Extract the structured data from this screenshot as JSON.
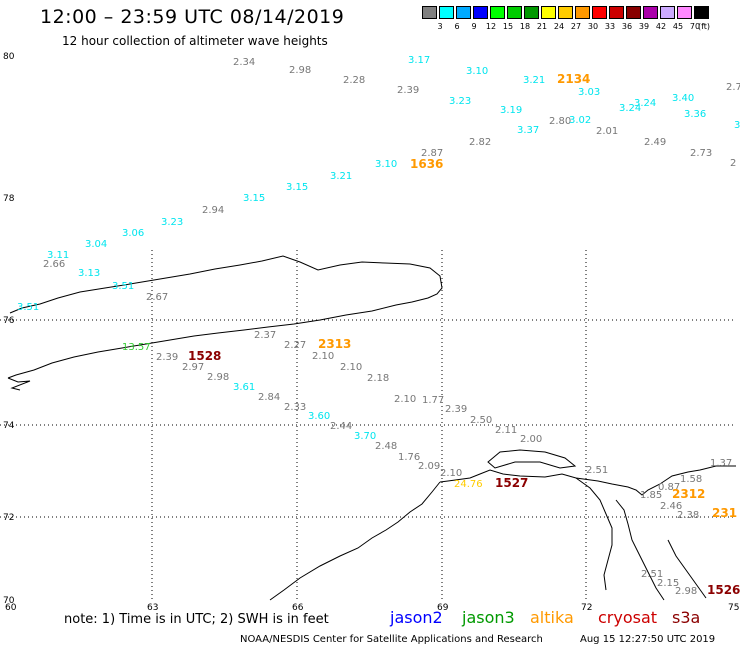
{
  "header": {
    "title": "12:00 – 23:59 UTC 08/14/2019",
    "subtitle": "12 hour collection of altimeter wave heights"
  },
  "legend": {
    "unit": "(ft)",
    "swatches": [
      {
        "color": "#808080",
        "label": "3"
      },
      {
        "color": "#00ffff",
        "label": "6"
      },
      {
        "color": "#00aaff",
        "label": "9"
      },
      {
        "color": "#0000ff",
        "label": "12"
      },
      {
        "color": "#00ff00",
        "label": "15"
      },
      {
        "color": "#00cc00",
        "label": "18"
      },
      {
        "color": "#009900",
        "label": "21"
      },
      {
        "color": "#ffff00",
        "label": "24"
      },
      {
        "color": "#ffcc00",
        "label": "27"
      },
      {
        "color": "#ff9900",
        "label": "30"
      },
      {
        "color": "#ff0000",
        "label": "33"
      },
      {
        "color": "#cc0000",
        "label": "36"
      },
      {
        "color": "#880000",
        "label": "39"
      },
      {
        "color": "#aa00aa",
        "label": "42"
      },
      {
        "color": "#ccaaff",
        "label": "45"
      },
      {
        "color": "#ff88ff",
        "label": "70"
      },
      {
        "color": "#000000",
        "label": ""
      }
    ]
  },
  "map": {
    "lat_labels": [
      "80",
      "78",
      "76",
      "74",
      "72",
      "70"
    ],
    "lon_labels": [
      "60",
      "63",
      "66",
      "69",
      "72",
      "75"
    ],
    "colors": {
      "gray": "#777777",
      "cyan": "#00e5ee",
      "orange": "#ff9900",
      "darkred": "#8b0000",
      "green": "#33cc33",
      "yellow": "#ffcc00"
    },
    "wave_labels": [
      {
        "text": "2.34",
        "c": "gray"
      },
      {
        "text": "2.98",
        "c": "gray"
      },
      {
        "text": "2.28",
        "c": "gray"
      },
      {
        "text": "3.17",
        "c": "cyan"
      },
      {
        "text": "3.10",
        "c": "cyan"
      },
      {
        "text": "2.39",
        "c": "gray"
      },
      {
        "text": "3.21",
        "c": "cyan"
      },
      {
        "text": "2134",
        "c": "orange"
      },
      {
        "text": "3.03",
        "c": "cyan"
      },
      {
        "text": "3.23",
        "c": "cyan"
      },
      {
        "text": "3.19",
        "c": "cyan"
      },
      {
        "text": "3.24",
        "c": "cyan"
      },
      {
        "text": "3.24",
        "c": "cyan"
      },
      {
        "text": "3.40",
        "c": "cyan"
      },
      {
        "text": "3.36",
        "c": "cyan"
      },
      {
        "text": "2.80",
        "c": "gray"
      },
      {
        "text": "3.02",
        "c": "cyan"
      },
      {
        "text": "3.37",
        "c": "cyan"
      },
      {
        "text": "2.01",
        "c": "gray"
      },
      {
        "text": "2.82",
        "c": "gray"
      },
      {
        "text": "2.49",
        "c": "gray"
      },
      {
        "text": "2.87",
        "c": "gray"
      },
      {
        "text": "1636",
        "c": "orange"
      },
      {
        "text": "3.10",
        "c": "cyan"
      },
      {
        "text": "2.73",
        "c": "gray"
      },
      {
        "text": "3.21",
        "c": "cyan"
      },
      {
        "text": "3.15",
        "c": "cyan"
      },
      {
        "text": "3.15",
        "c": "cyan"
      },
      {
        "text": "2.94",
        "c": "gray"
      },
      {
        "text": "3.23",
        "c": "cyan"
      },
      {
        "text": "3.06",
        "c": "cyan"
      },
      {
        "text": "3.04",
        "c": "cyan"
      },
      {
        "text": "3.11",
        "c": "cyan"
      },
      {
        "text": "2.66",
        "c": "gray"
      },
      {
        "text": "3.13",
        "c": "cyan"
      },
      {
        "text": "3.51",
        "c": "cyan"
      },
      {
        "text": "2.67",
        "c": "gray"
      },
      {
        "text": "3.51",
        "c": "cyan"
      },
      {
        "text": "2.37",
        "c": "gray"
      },
      {
        "text": "2.27",
        "c": "gray"
      },
      {
        "text": "2313",
        "c": "orange"
      },
      {
        "text": "13.57",
        "c": "green"
      },
      {
        "text": "2.39",
        "c": "gray"
      },
      {
        "text": "1528",
        "c": "darkred"
      },
      {
        "text": "2.10",
        "c": "gray"
      },
      {
        "text": "2.97",
        "c": "gray"
      },
      {
        "text": "2.10",
        "c": "gray"
      },
      {
        "text": "2.98",
        "c": "gray"
      },
      {
        "text": "2.18",
        "c": "gray"
      },
      {
        "text": "3.61",
        "c": "cyan"
      },
      {
        "text": "2.10",
        "c": "gray"
      },
      {
        "text": "2.84",
        "c": "gray"
      },
      {
        "text": "1.77",
        "c": "gray"
      },
      {
        "text": "2.33",
        "c": "gray"
      },
      {
        "text": "2.39",
        "c": "gray"
      },
      {
        "text": "3.60",
        "c": "cyan"
      },
      {
        "text": "2.50",
        "c": "gray"
      },
      {
        "text": "2.44",
        "c": "gray"
      },
      {
        "text": "2.11",
        "c": "gray"
      },
      {
        "text": "3.70",
        "c": "cyan"
      },
      {
        "text": "2.00",
        "c": "gray"
      },
      {
        "text": "2.48",
        "c": "gray"
      },
      {
        "text": "1.76",
        "c": "gray"
      },
      {
        "text": "2.09",
        "c": "gray"
      },
      {
        "text": "2.10",
        "c": "gray"
      },
      {
        "text": "24.76",
        "c": "yellow"
      },
      {
        "text": "1527",
        "c": "darkred"
      },
      {
        "text": "2.51",
        "c": "gray"
      },
      {
        "text": "1.37",
        "c": "gray"
      },
      {
        "text": "1.58",
        "c": "gray"
      },
      {
        "text": "0.87",
        "c": "gray"
      },
      {
        "text": "1.85",
        "c": "gray"
      },
      {
        "text": "2312",
        "c": "orange"
      },
      {
        "text": "2.46",
        "c": "gray"
      },
      {
        "text": "2.38",
        "c": "gray"
      },
      {
        "text": "231",
        "c": "orange"
      },
      {
        "text": "2.51",
        "c": "gray"
      },
      {
        "text": "2.15",
        "c": "gray"
      },
      {
        "text": "2.98",
        "c": "gray"
      },
      {
        "text": "1526",
        "c": "darkred"
      },
      {
        "text": "2.7",
        "c": "gray"
      },
      {
        "text": "2",
        "c": "gray"
      },
      {
        "text": "3",
        "c": "cyan"
      }
    ]
  },
  "footer": {
    "note": "note: 1) Time is in UTC; 2) SWH is in feet",
    "satellites": [
      {
        "name": "jason2",
        "color": "#0000ff"
      },
      {
        "name": "jason3",
        "color": "#009900"
      },
      {
        "name": "altika",
        "color": "#ff9900"
      },
      {
        "name": "cryosat",
        "color": "#cc0000"
      },
      {
        "name": "s3a",
        "color": "#8b0000"
      }
    ],
    "credit": "NOAA/NESDIS Center for Satellite Applications and Research",
    "timestamp": "Aug 15 12:27:50 UTC 2019"
  }
}
